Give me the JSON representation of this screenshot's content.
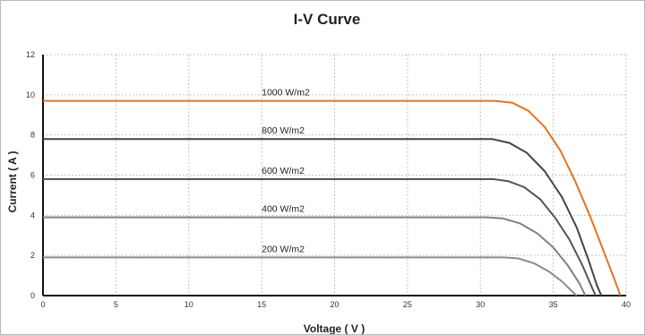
{
  "chart_data": {
    "type": "line",
    "title": "I-V Curve",
    "xlabel": "Voltage ( V )",
    "ylabel": "Current ( A )",
    "xlim": [
      0,
      40
    ],
    "ylim": [
      0,
      12
    ],
    "x_ticks": [
      0,
      5,
      10,
      15,
      20,
      25,
      30,
      35,
      40
    ],
    "y_ticks": [
      0,
      2,
      4,
      6,
      8,
      10,
      12
    ],
    "grid": "dotted",
    "series": [
      {
        "name": "1000 W/m2",
        "color": "#e8731f",
        "points": [
          [
            0,
            9.7
          ],
          [
            31.0,
            9.7
          ],
          [
            32.2,
            9.6
          ],
          [
            33.3,
            9.2
          ],
          [
            34.4,
            8.4
          ],
          [
            35.5,
            7.2
          ],
          [
            36.5,
            5.7
          ],
          [
            37.5,
            4.0
          ],
          [
            38.4,
            2.3
          ],
          [
            39.2,
            0.8
          ],
          [
            39.6,
            0
          ]
        ]
      },
      {
        "name": "800 W/m2",
        "color": "#444444",
        "points": [
          [
            0,
            7.8
          ],
          [
            29.8,
            7.8
          ],
          [
            30.8,
            7.8
          ],
          [
            32.0,
            7.6
          ],
          [
            33.2,
            7.1
          ],
          [
            34.4,
            6.2
          ],
          [
            35.6,
            4.9
          ],
          [
            36.6,
            3.4
          ],
          [
            37.4,
            1.8
          ],
          [
            38.0,
            0.5
          ],
          [
            38.3,
            0
          ]
        ]
      },
      {
        "name": "600 W/m2",
        "color": "#555555",
        "points": [
          [
            0,
            5.8
          ],
          [
            30.9,
            5.8
          ],
          [
            31.9,
            5.7
          ],
          [
            33.0,
            5.4
          ],
          [
            34.1,
            4.8
          ],
          [
            35.1,
            3.9
          ],
          [
            36.1,
            2.8
          ],
          [
            37.0,
            1.5
          ],
          [
            37.6,
            0.5
          ],
          [
            37.9,
            0
          ]
        ]
      },
      {
        "name": "400 W/m2",
        "color": "#808080",
        "points": [
          [
            0,
            3.9
          ],
          [
            30.4,
            3.9
          ],
          [
            31.5,
            3.85
          ],
          [
            32.7,
            3.6
          ],
          [
            33.9,
            3.1
          ],
          [
            35.0,
            2.4
          ],
          [
            36.0,
            1.5
          ],
          [
            36.8,
            0.6
          ],
          [
            37.2,
            0
          ]
        ]
      },
      {
        "name": "200 W/m2",
        "color": "#8c8c8c",
        "points": [
          [
            0,
            1.9
          ],
          [
            31.6,
            1.9
          ],
          [
            32.6,
            1.85
          ],
          [
            33.7,
            1.6
          ],
          [
            34.7,
            1.2
          ],
          [
            35.6,
            0.7
          ],
          [
            36.3,
            0.2
          ],
          [
            36.6,
            0
          ]
        ]
      }
    ]
  }
}
